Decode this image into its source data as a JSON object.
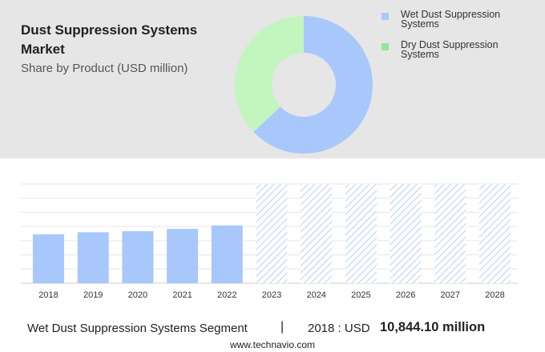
{
  "title": "Dust Suppression Systems Market",
  "subtitle": "Share by Product (USD million)",
  "legend": [
    {
      "label_line1": "Wet Dust Suppression",
      "label_line2": "Systems",
      "color": "#a8c8fb"
    },
    {
      "label_line1": "Dry Dust Suppression",
      "label_line2": "Systems",
      "color": "#8ee89e"
    }
  ],
  "footer": {
    "segment": "Wet Dust Suppression Systems Segment",
    "separator": "|",
    "year_label": "2018 : USD",
    "value": "10,844.10 million"
  },
  "source": "www.technavio.com",
  "chart_data": [
    {
      "type": "pie",
      "style": "donut",
      "categories": [
        "Wet Dust Suppression Systems",
        "Dry Dust Suppression Systems"
      ],
      "values": [
        63,
        37
      ],
      "colors": [
        "#a8c8fb",
        "#c3f5bf"
      ]
    },
    {
      "type": "bar",
      "categories": [
        "2018",
        "2019",
        "2020",
        "2021",
        "2022",
        "2023",
        "2024",
        "2025",
        "2026",
        "2027",
        "2028"
      ],
      "values": [
        10844.1,
        11300,
        11550,
        12050,
        12800,
        null,
        null,
        null,
        null,
        null,
        null
      ],
      "forecast_categories": [
        "2023",
        "2024",
        "2025",
        "2026",
        "2027",
        "2028"
      ],
      "ylim": [
        0,
        22000
      ],
      "grid": true,
      "bar_color": "#a8c8fb",
      "forecast_style": "hatched"
    }
  ]
}
